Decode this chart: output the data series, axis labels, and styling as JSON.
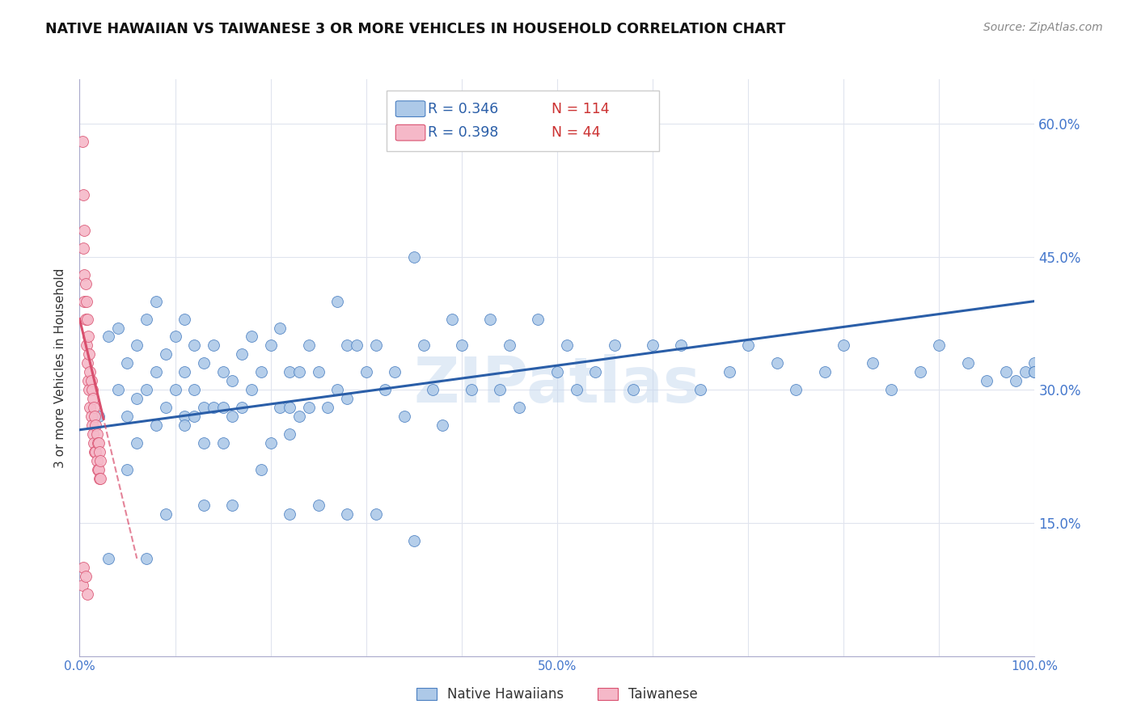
{
  "title": "NATIVE HAWAIIAN VS TAIWANESE 3 OR MORE VEHICLES IN HOUSEHOLD CORRELATION CHART",
  "source": "Source: ZipAtlas.com",
  "ylabel": "3 or more Vehicles in Household",
  "xlim": [
    0,
    1.0
  ],
  "ylim": [
    0,
    0.65
  ],
  "yticks": [
    0.0,
    0.15,
    0.3,
    0.45,
    0.6
  ],
  "ytick_labels": [
    "",
    "15.0%",
    "30.0%",
    "45.0%",
    "60.0%"
  ],
  "xtick_labels": [
    "0.0%",
    "",
    "",
    "",
    "",
    "50.0%",
    "",
    "",
    "",
    "",
    "100.0%"
  ],
  "blue_color": "#adc9e8",
  "blue_edge": "#4a7fc1",
  "pink_color": "#f5b8c8",
  "pink_edge": "#d94f6e",
  "line_blue": "#2a5ea8",
  "line_pink": "#d94f6e",
  "watermark": "ZIPatlas",
  "legend_R_blue": "0.346",
  "legend_N_blue": "114",
  "legend_R_pink": "0.398",
  "legend_N_pink": "44",
  "blue_intercept": 0.255,
  "blue_slope": 0.145,
  "pink_intercept": 0.38,
  "pink_slope": -4.5,
  "blue_x": [
    0.03,
    0.04,
    0.04,
    0.05,
    0.05,
    0.06,
    0.06,
    0.06,
    0.07,
    0.07,
    0.08,
    0.08,
    0.08,
    0.09,
    0.09,
    0.1,
    0.1,
    0.11,
    0.11,
    0.11,
    0.12,
    0.12,
    0.12,
    0.13,
    0.13,
    0.13,
    0.14,
    0.14,
    0.15,
    0.15,
    0.15,
    0.16,
    0.16,
    0.17,
    0.17,
    0.18,
    0.18,
    0.19,
    0.2,
    0.2,
    0.21,
    0.21,
    0.22,
    0.22,
    0.22,
    0.23,
    0.23,
    0.24,
    0.24,
    0.25,
    0.26,
    0.27,
    0.27,
    0.28,
    0.28,
    0.29,
    0.3,
    0.31,
    0.32,
    0.33,
    0.34,
    0.35,
    0.36,
    0.37,
    0.38,
    0.39,
    0.4,
    0.41,
    0.43,
    0.44,
    0.45,
    0.46,
    0.48,
    0.5,
    0.51,
    0.52,
    0.54,
    0.56,
    0.58,
    0.6,
    0.63,
    0.65,
    0.68,
    0.7,
    0.73,
    0.75,
    0.78,
    0.8,
    0.83,
    0.85,
    0.88,
    0.9,
    0.93,
    0.95,
    0.97,
    0.98,
    0.99,
    1.0,
    1.0,
    1.0,
    0.02,
    0.03,
    0.05,
    0.07,
    0.09,
    0.11,
    0.13,
    0.16,
    0.19,
    0.22,
    0.25,
    0.28,
    0.31,
    0.35
  ],
  "blue_y": [
    0.36,
    0.37,
    0.3,
    0.33,
    0.27,
    0.35,
    0.29,
    0.24,
    0.38,
    0.3,
    0.4,
    0.32,
    0.26,
    0.34,
    0.28,
    0.36,
    0.3,
    0.38,
    0.32,
    0.27,
    0.35,
    0.3,
    0.27,
    0.33,
    0.28,
    0.24,
    0.35,
    0.28,
    0.32,
    0.28,
    0.24,
    0.31,
    0.27,
    0.34,
    0.28,
    0.36,
    0.3,
    0.32,
    0.35,
    0.24,
    0.37,
    0.28,
    0.32,
    0.28,
    0.25,
    0.32,
    0.27,
    0.35,
    0.28,
    0.32,
    0.28,
    0.4,
    0.3,
    0.35,
    0.29,
    0.35,
    0.32,
    0.35,
    0.3,
    0.32,
    0.27,
    0.45,
    0.35,
    0.3,
    0.26,
    0.38,
    0.35,
    0.3,
    0.38,
    0.3,
    0.35,
    0.28,
    0.38,
    0.32,
    0.35,
    0.3,
    0.32,
    0.35,
    0.3,
    0.35,
    0.35,
    0.3,
    0.32,
    0.35,
    0.33,
    0.3,
    0.32,
    0.35,
    0.33,
    0.3,
    0.32,
    0.35,
    0.33,
    0.31,
    0.32,
    0.31,
    0.32,
    0.33,
    0.32,
    0.32,
    0.27,
    0.11,
    0.21,
    0.11,
    0.16,
    0.26,
    0.17,
    0.17,
    0.21,
    0.16,
    0.17,
    0.16,
    0.16,
    0.13
  ],
  "pink_x": [
    0.003,
    0.004,
    0.004,
    0.005,
    0.005,
    0.005,
    0.006,
    0.006,
    0.007,
    0.007,
    0.008,
    0.008,
    0.009,
    0.009,
    0.01,
    0.01,
    0.011,
    0.011,
    0.012,
    0.012,
    0.013,
    0.013,
    0.014,
    0.014,
    0.015,
    0.015,
    0.016,
    0.016,
    0.017,
    0.017,
    0.018,
    0.018,
    0.019,
    0.019,
    0.02,
    0.02,
    0.021,
    0.021,
    0.022,
    0.022,
    0.003,
    0.004,
    0.006,
    0.008
  ],
  "pink_y": [
    0.58,
    0.52,
    0.46,
    0.48,
    0.43,
    0.4,
    0.42,
    0.38,
    0.4,
    0.35,
    0.38,
    0.33,
    0.36,
    0.31,
    0.34,
    0.3,
    0.32,
    0.28,
    0.31,
    0.27,
    0.3,
    0.26,
    0.29,
    0.25,
    0.28,
    0.24,
    0.27,
    0.23,
    0.26,
    0.23,
    0.25,
    0.22,
    0.24,
    0.21,
    0.24,
    0.21,
    0.23,
    0.2,
    0.22,
    0.2,
    0.08,
    0.1,
    0.09,
    0.07
  ]
}
